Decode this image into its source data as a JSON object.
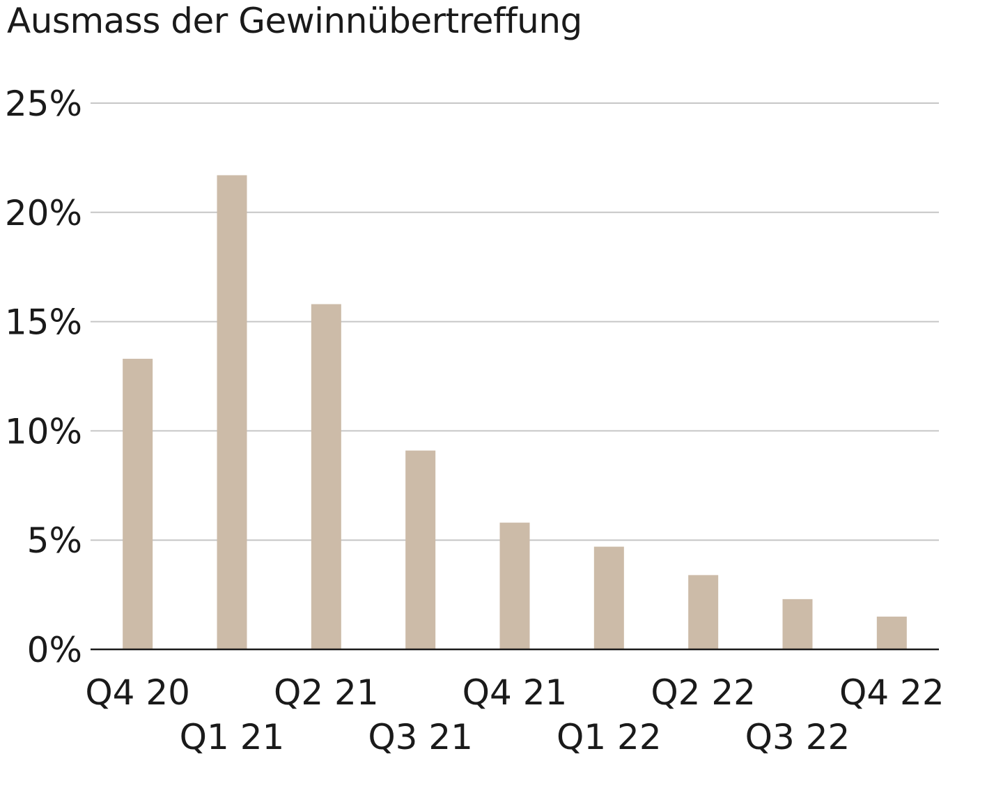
{
  "chart_data": {
    "type": "bar",
    "title": "Ausmass der Gewinnübertreffung",
    "xlabel": "",
    "ylabel": "",
    "categories": [
      "Q4 20",
      "Q1 21",
      "Q2 21",
      "Q3 21",
      "Q4 21",
      "Q1 22",
      "Q2 22",
      "Q3 22",
      "Q4 22"
    ],
    "values": [
      13.3,
      21.7,
      15.8,
      9.1,
      5.8,
      4.7,
      3.4,
      2.3,
      1.5
    ],
    "ylim": [
      0,
      25
    ],
    "yticks": [
      0,
      5,
      10,
      15,
      20,
      25
    ],
    "ytick_labels": [
      "0%",
      "5%",
      "10%",
      "15%",
      "20%",
      "25%"
    ],
    "grid": true,
    "legend": "none",
    "x_label_rows": "alternating",
    "colors": {
      "bar": "#ccbba8",
      "grid": "#c6c6c6",
      "axis": "#1a1a1a",
      "text": "#1a1a1a"
    }
  }
}
